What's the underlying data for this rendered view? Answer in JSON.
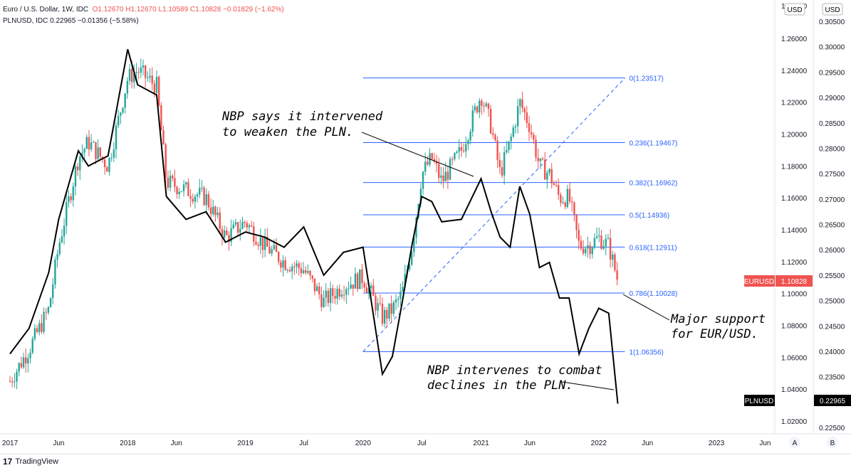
{
  "legend": {
    "line1_name": "Euro / U.S. Dollar, 1W, IDC",
    "line1_ohlc": "O1.12670  H1.12670  L1.10589  C1.10828  −0.01829 (−1.62%)",
    "line2": "PLNUSD, IDC  0.22965  −0.01356 (−5.58%)"
  },
  "footer": {
    "brand": "TradingView",
    "logo": "tv-logo-icon"
  },
  "axes": {
    "left_currency": "USD",
    "right_currency": "USD",
    "left_ticks": [
      "1.26000",
      "1.24000",
      "1.22000",
      "1.20000",
      "1.18000",
      "1.16000",
      "1.14000",
      "1.12000",
      "1.10000",
      "1.08000",
      "1.06000",
      "1.04000",
      "1.02000"
    ],
    "left_top_partial": "1.28000",
    "right_ticks": [
      "0.30500",
      "0.30000",
      "0.29500",
      "0.29000",
      "0.28500",
      "0.28000",
      "0.27500",
      "0.27000",
      "0.26500",
      "0.26000",
      "0.25500",
      "0.25000",
      "0.24500",
      "0.24000",
      "0.23500",
      "0.22500"
    ],
    "x_ticks": [
      "2017",
      "Jun",
      "2018",
      "Jun",
      "2019",
      "Jul",
      "2020",
      "Jul",
      "2021",
      "Jun",
      "2022",
      "Jun",
      "2023",
      "Jun"
    ],
    "scale_buttons": [
      "A",
      "B"
    ]
  },
  "badges": {
    "eurusd_label": "EURUSD",
    "eurusd_value": "1.10828",
    "eurusd_color": "#ef5350",
    "plnusd_label": "PLNUSD",
    "plnusd_value": "0.22965",
    "plnusd_color": "#000000"
  },
  "fib_levels": [
    {
      "label": "0(1.23517)",
      "value": 1.23517
    },
    {
      "label": "0.236(1.19467)",
      "value": 1.19467
    },
    {
      "label": "0.382(1.16962)",
      "value": 1.16962
    },
    {
      "label": "0.5(1.14936)",
      "value": 1.14936
    },
    {
      "label": "0.618(1.12911)",
      "value": 1.12911
    },
    {
      "label": "0.786(1.10028)",
      "value": 1.10028
    },
    {
      "label": "1(1.06356)",
      "value": 1.06356
    }
  ],
  "annotations": [
    {
      "lines": [
        "NBP says it intervened",
        "to weaken the PLN."
      ]
    },
    {
      "lines": [
        "Major support",
        "for EUR/USD."
      ]
    },
    {
      "lines": [
        "NBP intervenes to combat",
        "declines in the PLN."
      ]
    }
  ],
  "colors": {
    "up": "#26a69a",
    "down": "#ef5350",
    "fib": "#2962ff",
    "pln_line": "#000000"
  },
  "chart_data": {
    "type": "line",
    "title": "Euro / U.S. Dollar, 1W, IDC",
    "series": [
      {
        "name": "Euro / U.S. Dollar",
        "style": "candlestick",
        "x": [
          "2017-01",
          "2017-03",
          "2017-05",
          "2017-06",
          "2017-08",
          "2017-09",
          "2017-11",
          "2018-01",
          "2018-02",
          "2018-04",
          "2018-05",
          "2018-07",
          "2018-09",
          "2018-11",
          "2019-01",
          "2019-03",
          "2019-05",
          "2019-07",
          "2019-09",
          "2019-11",
          "2020-01",
          "2020-03",
          "2020-04",
          "2020-05",
          "2020-06",
          "2020-07",
          "2020-08",
          "2020-09",
          "2020-11",
          "2021-01",
          "2021-02",
          "2021-03",
          "2021-04",
          "2021-05",
          "2021-06",
          "2021-07",
          "2021-08",
          "2021-09",
          "2021-10",
          "2021-11",
          "2021-12",
          "2022-01",
          "2022-02",
          "2022-03"
        ],
        "values": [
          1.045,
          1.065,
          1.09,
          1.13,
          1.185,
          1.195,
          1.18,
          1.235,
          1.24,
          1.23,
          1.17,
          1.165,
          1.16,
          1.135,
          1.145,
          1.13,
          1.12,
          1.115,
          1.095,
          1.105,
          1.11,
          1.085,
          1.09,
          1.1,
          1.13,
          1.175,
          1.185,
          1.17,
          1.19,
          1.225,
          1.205,
          1.175,
          1.195,
          1.22,
          1.205,
          1.18,
          1.175,
          1.16,
          1.16,
          1.13,
          1.13,
          1.135,
          1.13,
          1.108
        ]
      },
      {
        "name": "PLNUSD",
        "x": [
          "2017-01",
          "2017-03",
          "2017-05",
          "2017-06",
          "2017-08",
          "2017-09",
          "2017-11",
          "2018-01",
          "2018-02",
          "2018-04",
          "2018-05",
          "2018-07",
          "2018-09",
          "2018-11",
          "2019-01",
          "2019-03",
          "2019-05",
          "2019-07",
          "2019-09",
          "2019-11",
          "2020-01",
          "2020-03",
          "2020-04",
          "2020-05",
          "2020-06",
          "2020-07",
          "2020-08",
          "2020-09",
          "2020-11",
          "2021-01",
          "2021-02",
          "2021-03",
          "2021-04",
          "2021-05",
          "2021-06",
          "2021-07",
          "2021-08",
          "2021-09",
          "2021-10",
          "2021-11",
          "2021-12",
          "2022-01",
          "2022-02",
          "2022-03"
        ],
        "values": [
          0.2395,
          0.2445,
          0.2555,
          0.266,
          0.2795,
          0.2765,
          0.2785,
          0.2995,
          0.2925,
          0.2905,
          0.2705,
          0.266,
          0.2675,
          0.2615,
          0.2635,
          0.2625,
          0.2605,
          0.2645,
          0.255,
          0.2595,
          0.2605,
          0.2355,
          0.239,
          0.2495,
          0.261,
          0.2705,
          0.2695,
          0.2655,
          0.266,
          0.274,
          0.2675,
          0.2625,
          0.2605,
          0.2725,
          0.267,
          0.2565,
          0.2575,
          0.2505,
          0.2505,
          0.2395,
          0.2445,
          0.2485,
          0.2475,
          0.2297
        ]
      }
    ],
    "ylim_left": [
      1.01,
      1.28
    ],
    "ylim_right": [
      0.222,
      0.3085
    ],
    "xlim": [
      "2016-12",
      "2023-07"
    ],
    "grid": false
  }
}
